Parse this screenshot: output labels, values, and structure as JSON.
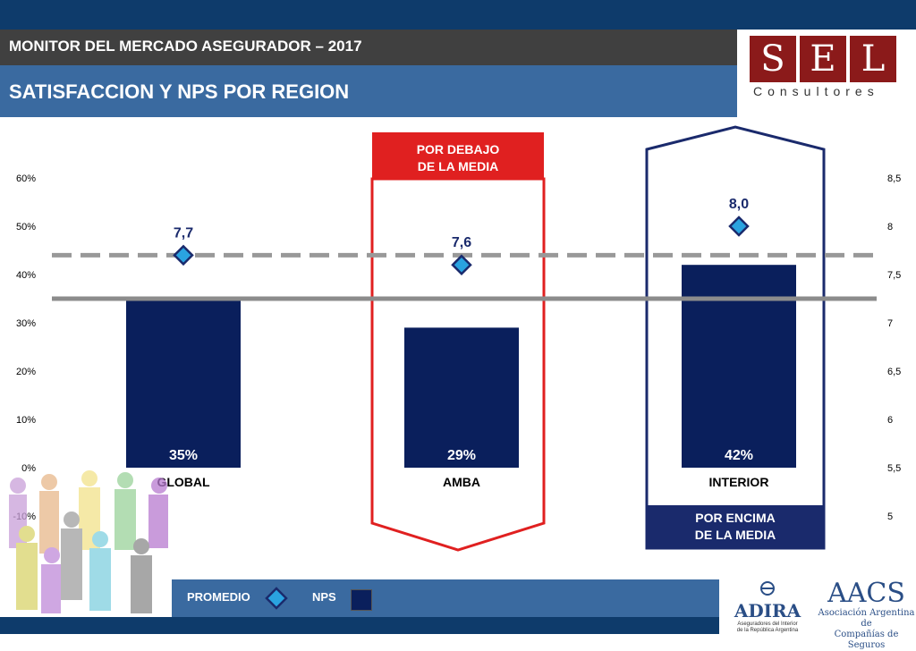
{
  "header": {
    "subtitle": "MONITOR DEL MERCADO ASEGURADOR – 2017",
    "title": "SATISFACCION Y NPS POR REGION"
  },
  "logo": {
    "letters": [
      "S",
      "E",
      "L"
    ],
    "subtitle": "Consultores"
  },
  "callouts": {
    "below": {
      "line1": "POR DEBAJO",
      "line2": "DE LA MEDIA"
    },
    "above": {
      "line1": "POR ENCIMA",
      "line2": "DE LA MEDIA"
    }
  },
  "legend": {
    "promedio": "PROMEDIO",
    "nps": "NPS"
  },
  "footer_logos": {
    "adira": {
      "name": "ADIRA",
      "line1": "Aseguradores del Interior",
      "line2": "de la República Argentina"
    },
    "aacs": {
      "name": "AACS",
      "line1": "Asociación Argentina de",
      "line2": "Compañías de Seguros"
    }
  },
  "colors": {
    "bar": "#0a1f5c",
    "marker": "#2aa3e0",
    "marker_stroke": "#1a2a6c",
    "avg_nps": "#999999",
    "avg_sat": "#8c8c8c",
    "below": "#e02020",
    "above": "#1a2a6c"
  },
  "chart_data": {
    "type": "bar",
    "categories": [
      "GLOBAL",
      "AMBA",
      "INTERIOR"
    ],
    "series": [
      {
        "name": "NPS",
        "axis": "left",
        "values": [
          35,
          29,
          42
        ],
        "labels": [
          "35%",
          "29%",
          "42%"
        ]
      },
      {
        "name": "PROMEDIO",
        "axis": "right",
        "values": [
          7.7,
          7.6,
          8.0
        ],
        "labels": [
          "7,7",
          "7,6",
          "8,0"
        ]
      }
    ],
    "reference_lines": [
      {
        "axis": "right",
        "value": 7.7,
        "style": "dashed"
      },
      {
        "axis": "left",
        "value": 35,
        "style": "solid"
      }
    ],
    "y_left": {
      "ylim": [
        -10,
        60
      ],
      "ticks": [
        60,
        50,
        40,
        30,
        20,
        10,
        0,
        -10
      ],
      "tick_labels": [
        "60%",
        "50%",
        "40%",
        "30%",
        "20%",
        "10%",
        "0%",
        "-10%"
      ]
    },
    "y_right": {
      "ylim": [
        5,
        8.5
      ],
      "ticks": [
        8.5,
        8,
        7.5,
        7,
        6.5,
        6,
        5.5,
        5
      ],
      "tick_labels": [
        "8,5",
        "8",
        "7,5",
        "7",
        "6,5",
        "6",
        "5,5",
        "5"
      ]
    },
    "legend_position": "bottom",
    "grid": false
  }
}
